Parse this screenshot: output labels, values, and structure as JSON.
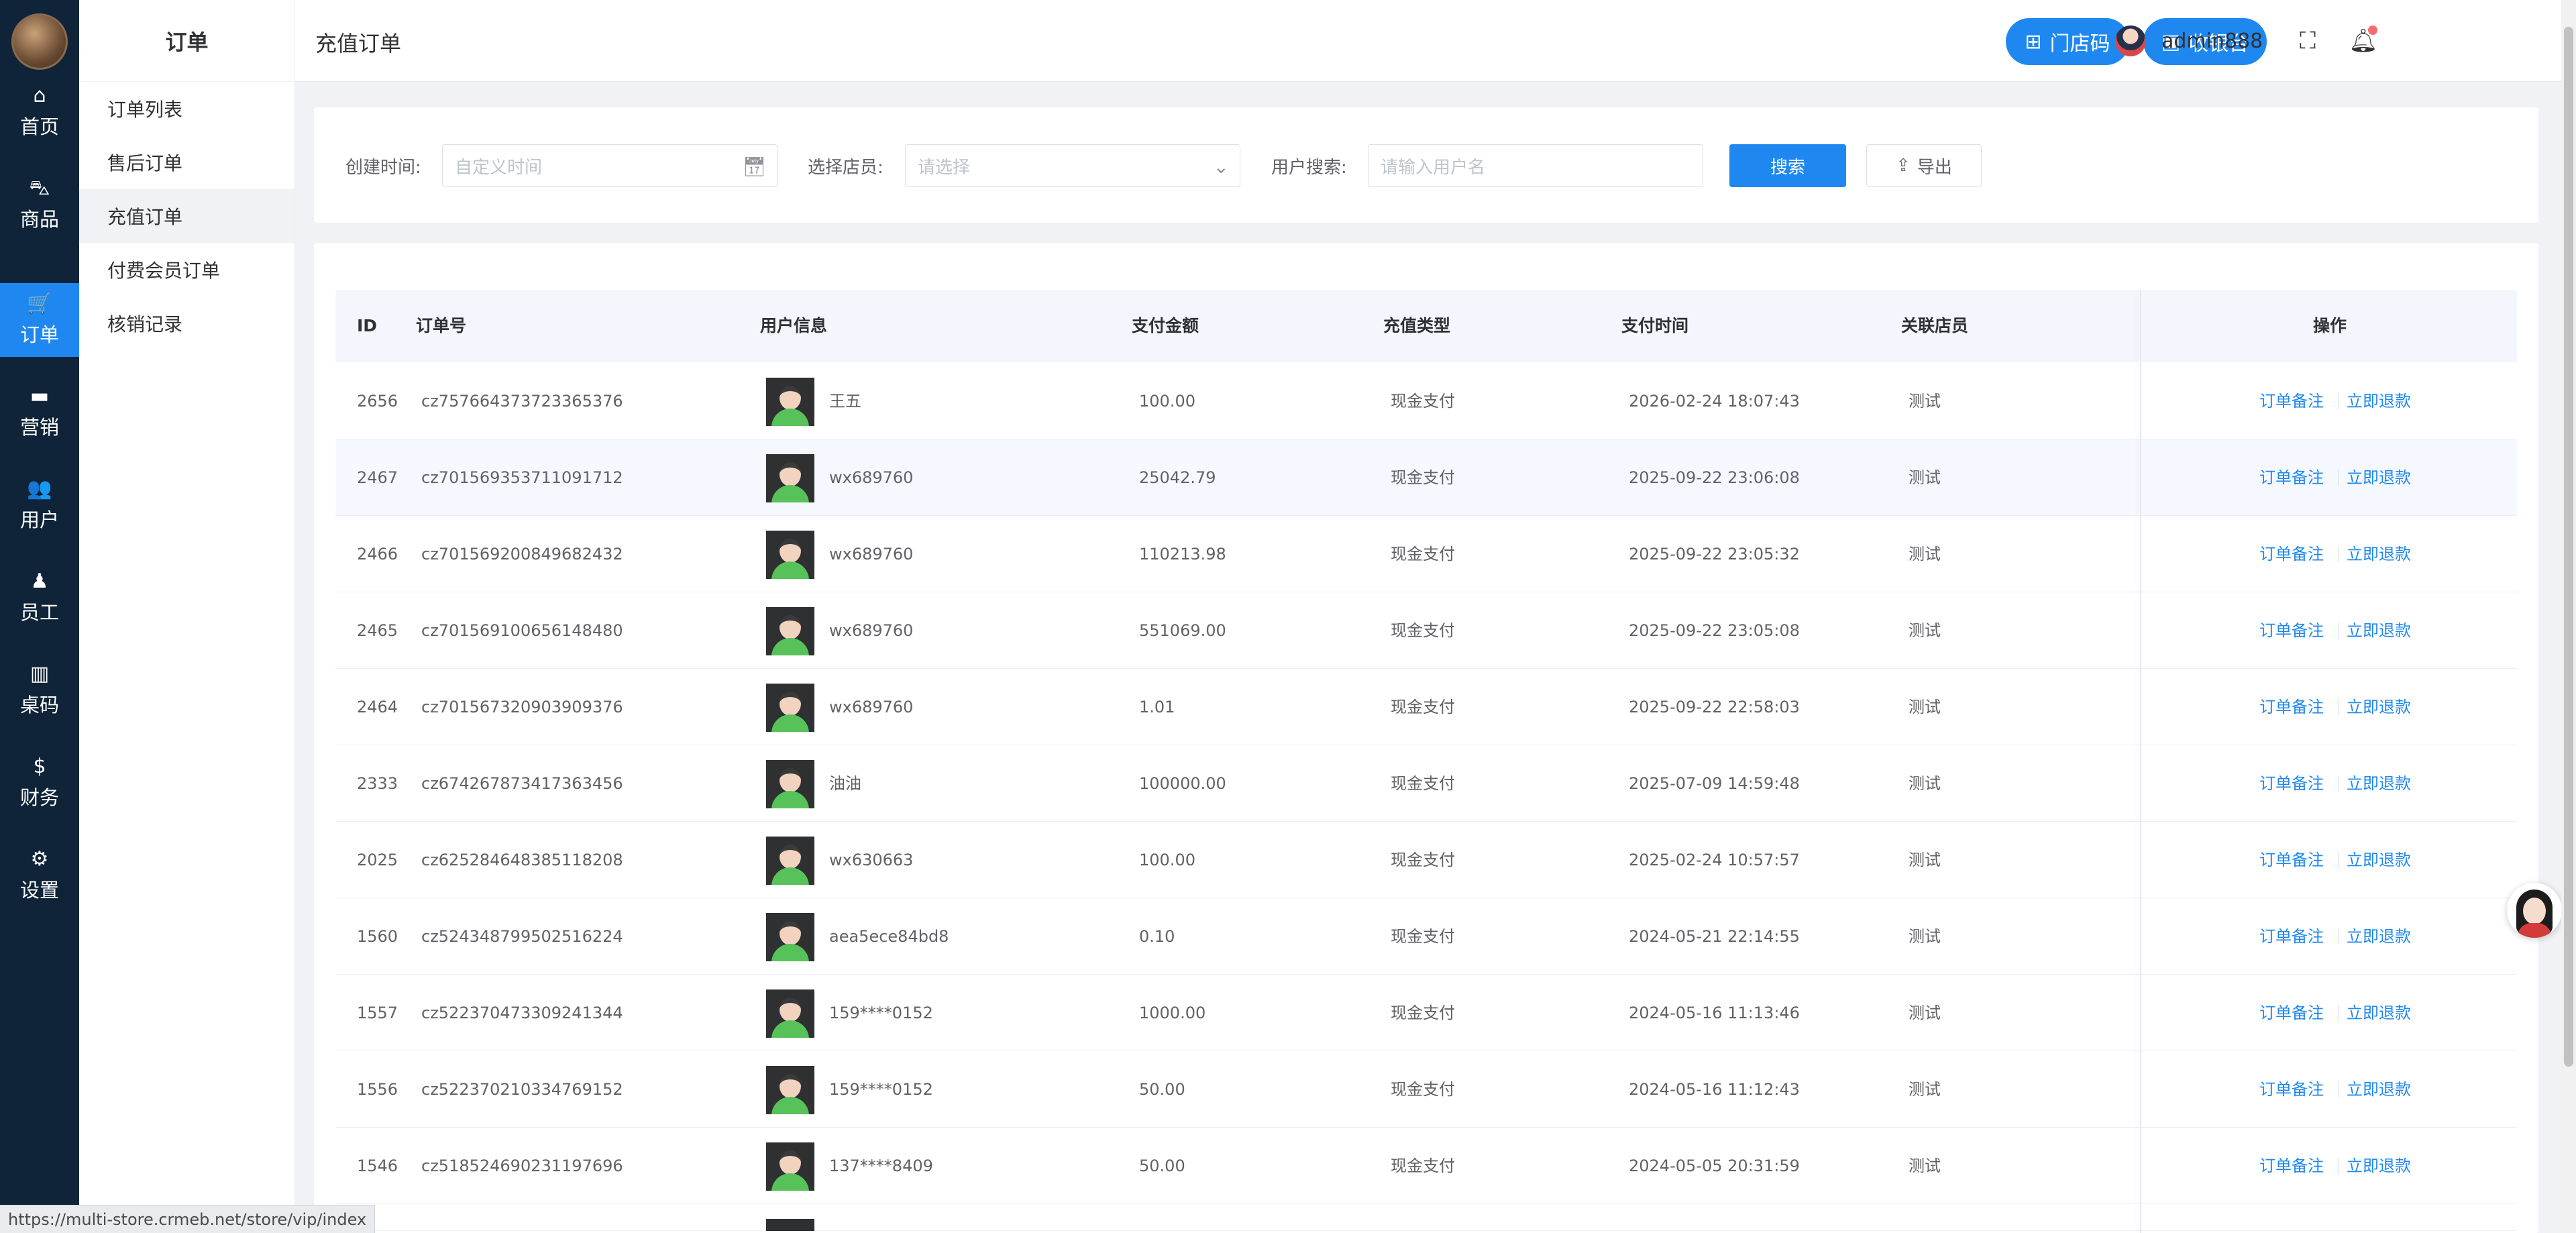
{
  "nav": {
    "items": [
      {
        "icon": "⌂",
        "label": "首页"
      },
      {
        "icon": "⛍",
        "label": "商品"
      },
      {
        "icon": "🛒",
        "label": "订单"
      },
      {
        "icon": "▬",
        "label": "营销"
      },
      {
        "icon": "👥",
        "label": "用户"
      },
      {
        "icon": "♟",
        "label": "员工"
      },
      {
        "icon": "▥",
        "label": "桌码"
      },
      {
        "icon": "$",
        "label": "财务"
      },
      {
        "icon": "⚙",
        "label": "设置"
      }
    ],
    "active_index": 2
  },
  "submenu": {
    "title": "订单",
    "items": [
      "订单列表",
      "售后订单",
      "充值订单",
      "付费会员订单",
      "核销记录"
    ],
    "active_index": 2
  },
  "header": {
    "title": "充值订单",
    "store_code_label": "门店码",
    "cashier_label": "收银台",
    "username": "admin888"
  },
  "filters": {
    "created_time_label": "创建时间:",
    "created_time_placeholder": "自定义时间",
    "staff_label": "选择店员:",
    "staff_placeholder": "请选择",
    "user_search_label": "用户搜索:",
    "user_search_placeholder": "请输入用户名",
    "search_button": "搜索",
    "export_button": "导出"
  },
  "table": {
    "columns": [
      "ID",
      "订单号",
      "用户信息",
      "支付金额",
      "充值类型",
      "支付时间",
      "关联店员",
      "操作"
    ],
    "action_labels": [
      "订单备注",
      "立即退款"
    ],
    "rows": [
      {
        "id": "2656",
        "order_no": "cz757664373723365376",
        "user": "王五",
        "amount": "100.00",
        "type": "现金支付",
        "time": "2026-02-24 18:07:43",
        "staff": "测试"
      },
      {
        "id": "2467",
        "order_no": "cz701569353711091712",
        "user": "wx689760",
        "amount": "25042.79",
        "type": "现金支付",
        "time": "2025-09-22 23:06:08",
        "staff": "测试"
      },
      {
        "id": "2466",
        "order_no": "cz701569200849682432",
        "user": "wx689760",
        "amount": "110213.98",
        "type": "现金支付",
        "time": "2025-09-22 23:05:32",
        "staff": "测试"
      },
      {
        "id": "2465",
        "order_no": "cz701569100656148480",
        "user": "wx689760",
        "amount": "551069.00",
        "type": "现金支付",
        "time": "2025-09-22 23:05:08",
        "staff": "测试"
      },
      {
        "id": "2464",
        "order_no": "cz701567320903909376",
        "user": "wx689760",
        "amount": "1.01",
        "type": "现金支付",
        "time": "2025-09-22 22:58:03",
        "staff": "测试"
      },
      {
        "id": "2333",
        "order_no": "cz674267873417363456",
        "user": "油油",
        "amount": "100000.00",
        "type": "现金支付",
        "time": "2025-07-09 14:59:48",
        "staff": "测试"
      },
      {
        "id": "2025",
        "order_no": "cz625284648385118208",
        "user": "wx630663",
        "amount": "100.00",
        "type": "现金支付",
        "time": "2025-02-24 10:57:57",
        "staff": "测试"
      },
      {
        "id": "1560",
        "order_no": "cz524348799502516224",
        "user": "aea5ece84bd8",
        "amount": "0.10",
        "type": "现金支付",
        "time": "2024-05-21 22:14:55",
        "staff": "测试"
      },
      {
        "id": "1557",
        "order_no": "cz522370473309241344",
        "user": "159****0152",
        "amount": "1000.00",
        "type": "现金支付",
        "time": "2024-05-16 11:13:46",
        "staff": "测试"
      },
      {
        "id": "1556",
        "order_no": "cz522370210334769152",
        "user": "159****0152",
        "amount": "50.00",
        "type": "现金支付",
        "time": "2024-05-16 11:12:43",
        "staff": "测试"
      },
      {
        "id": "1546",
        "order_no": "cz518524690231197696",
        "user": "137****8409",
        "amount": "50.00",
        "type": "现金支付",
        "time": "2024-05-05 20:31:59",
        "staff": "测试"
      }
    ]
  },
  "statusbar": {
    "url": "https://multi-store.crmeb.net/store/vip/index"
  },
  "colors": {
    "primary": "#1e88f0",
    "nav_bg": "#0f2438",
    "notification_dot": "#f56c6c"
  }
}
